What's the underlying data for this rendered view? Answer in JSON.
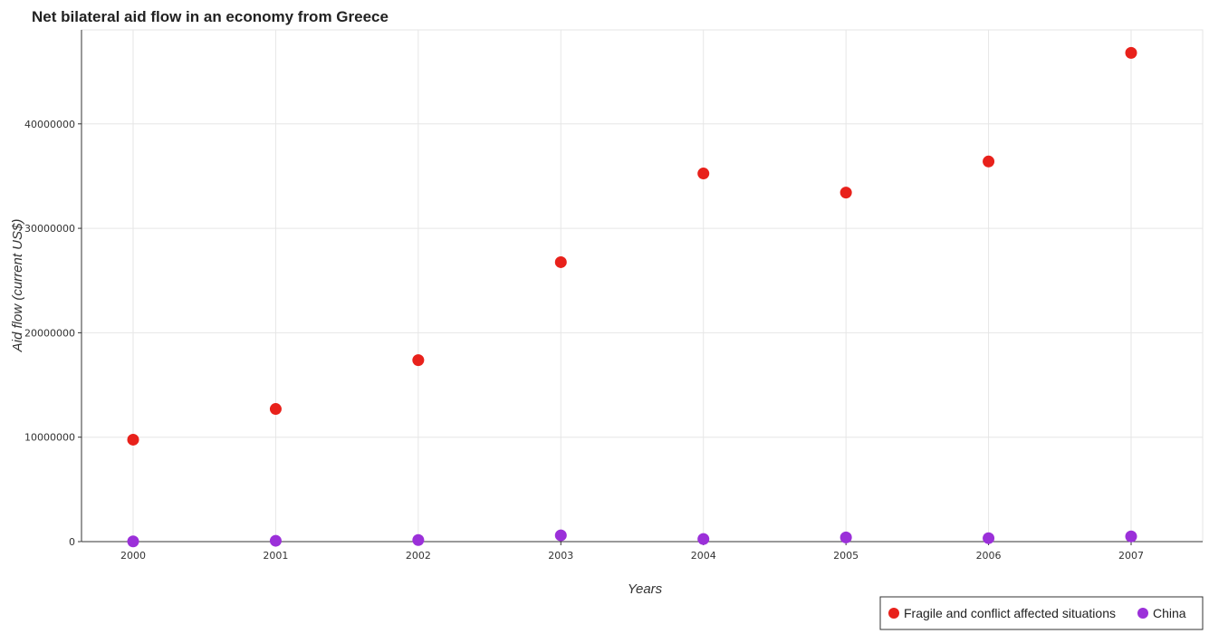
{
  "chart_data": {
    "type": "scatter",
    "title": "Net bilateral aid flow in an economy from Greece",
    "xlabel": "Years",
    "ylabel": "Aid flow (current US$)",
    "categories": [
      "2000",
      "2001",
      "2002",
      "2003",
      "2004",
      "2005",
      "2006",
      "2007"
    ],
    "yticks": [
      0,
      10000000,
      20000000,
      30000000,
      40000000
    ],
    "ytick_labels": [
      "0",
      "10000000",
      "20000000",
      "30000000",
      "40000000"
    ],
    "ylim": [
      0,
      49000000
    ],
    "grid": true,
    "legend_position": "bottom-right",
    "series": [
      {
        "name": "Fragile and conflict affected situations",
        "color": "#e8211b",
        "values": [
          9760000,
          12700000,
          17380000,
          26760000,
          35250000,
          33420000,
          36400000,
          46800000
        ]
      },
      {
        "name": "China",
        "color": "#9b30d9",
        "values": [
          20000,
          80000,
          150000,
          600000,
          250000,
          400000,
          330000,
          500000
        ]
      }
    ]
  }
}
